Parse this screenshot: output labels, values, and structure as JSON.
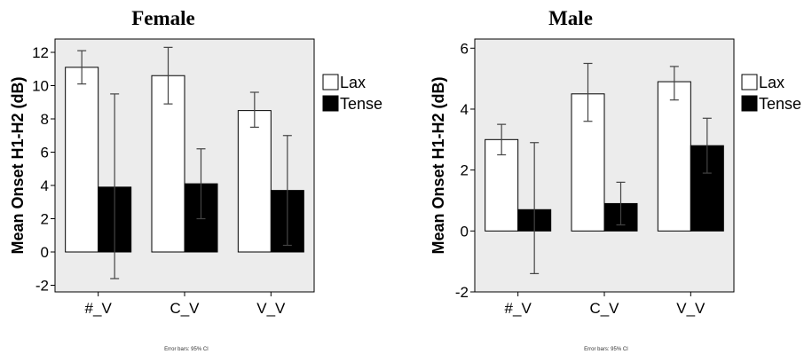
{
  "chart_data": [
    {
      "type": "bar",
      "title": "Female",
      "ylabel": "Mean Onset H1-H2 (dB)",
      "categories": [
        "#_V",
        "C_V",
        "V_V"
      ],
      "ylim": [
        -2.4,
        12.8
      ],
      "yticks": [
        -2,
        0,
        2,
        4,
        6,
        8,
        10,
        12
      ],
      "legend_position": "right",
      "grid": false,
      "series": [
        {
          "name": "Lax",
          "color": "#ffffff",
          "values": [
            11.1,
            10.6,
            8.5
          ],
          "err_low": [
            10.1,
            8.9,
            7.5
          ],
          "err_high": [
            12.1,
            12.3,
            9.6
          ]
        },
        {
          "name": "Tense",
          "color": "#000000",
          "values": [
            3.9,
            4.1,
            3.7
          ],
          "err_low": [
            -1.6,
            2.0,
            0.4
          ],
          "err_high": [
            9.5,
            6.2,
            7.0
          ]
        }
      ],
      "note": "Error bars: 95% CI"
    },
    {
      "type": "bar",
      "title": "Male",
      "ylabel": "Mean Onset H1-H2 (dB)",
      "categories": [
        "#_V",
        "C_V",
        "V_V"
      ],
      "ylim": [
        -2.0,
        6.3
      ],
      "yticks": [
        -2,
        0,
        2,
        4,
        6
      ],
      "legend_position": "right",
      "grid": false,
      "series": [
        {
          "name": "Lax",
          "color": "#ffffff",
          "values": [
            3.0,
            4.5,
            4.9
          ],
          "err_low": [
            2.5,
            3.6,
            4.3
          ],
          "err_high": [
            3.5,
            5.5,
            5.4
          ]
        },
        {
          "name": "Tense",
          "color": "#000000",
          "values": [
            0.7,
            0.9,
            2.8
          ],
          "err_low": [
            -1.4,
            0.2,
            1.9
          ],
          "err_high": [
            2.9,
            1.6,
            3.7
          ]
        }
      ],
      "note": "Error bars: 95% CI"
    }
  ]
}
